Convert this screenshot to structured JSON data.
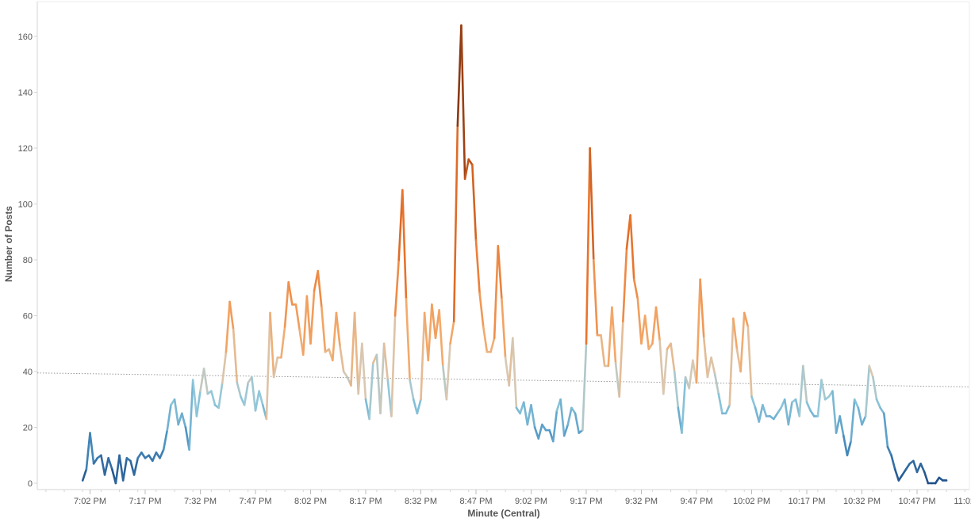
{
  "chart_data": {
    "type": "line",
    "title": "",
    "xlabel": "Minute (Central)",
    "ylabel": "Number of Posts",
    "ylim": [
      0,
      168
    ],
    "x_range_minutes_after_7pm": [
      -10,
      125
    ],
    "yticks": [
      0,
      20,
      40,
      60,
      80,
      100,
      120,
      140,
      160
    ],
    "xticks": [
      {
        "value": 2,
        "label": "7:02 PM"
      },
      {
        "value": 17,
        "label": "7:17 PM"
      },
      {
        "value": 32,
        "label": "7:32 PM"
      },
      {
        "value": 47,
        "label": "7:47 PM"
      },
      {
        "value": 62,
        "label": "8:02 PM"
      },
      {
        "value": 77,
        "label": "8:17 PM"
      },
      {
        "value": 92,
        "label": "8:32 PM"
      },
      {
        "value": 107,
        "label": "8:47 PM"
      },
      {
        "value": 122,
        "label": "9:02 PM"
      },
      {
        "value": 137,
        "label": "9:17 PM"
      },
      {
        "value": 152,
        "label": "9:32 PM"
      },
      {
        "value": 167,
        "label": "9:47 PM"
      },
      {
        "value": 182,
        "label": "10:02 PM"
      },
      {
        "value": 197,
        "label": "10:17 PM"
      },
      {
        "value": 212,
        "label": "10:32 PM"
      },
      {
        "value": 227,
        "label": "10:47 PM"
      },
      {
        "value": 242,
        "label": "11:02 PM"
      }
    ],
    "series": [
      {
        "start_minute": 0,
        "step_minutes": 1,
        "values": [
          1,
          5,
          18,
          7,
          9,
          10,
          3,
          9,
          5,
          0,
          10,
          1,
          9,
          8,
          3,
          9,
          11,
          9,
          10,
          8,
          11,
          9,
          12,
          19,
          28,
          30,
          21,
          25,
          20,
          12,
          37,
          24,
          33,
          41,
          32,
          33,
          28,
          27,
          36,
          47,
          65,
          55,
          36,
          31,
          28,
          36,
          38,
          26,
          33,
          28,
          23,
          61,
          38,
          45,
          45,
          56,
          72,
          64,
          64,
          55,
          46,
          67,
          50,
          69,
          76,
          63,
          47,
          48,
          44,
          61,
          49,
          40,
          38,
          35,
          61,
          32,
          50,
          30,
          23,
          43,
          46,
          25,
          50,
          37,
          24,
          60,
          80,
          105,
          66,
          37,
          30,
          25,
          30,
          61,
          44,
          64,
          52,
          62,
          42,
          30,
          50,
          58,
          128,
          164,
          109,
          116,
          114,
          87,
          68,
          56,
          47,
          47,
          52,
          85,
          66,
          45,
          35,
          52,
          27,
          25,
          29,
          21,
          28,
          20,
          16,
          21,
          19,
          19,
          15,
          26,
          30,
          17,
          21,
          27,
          25,
          18,
          19,
          50,
          120,
          80,
          53,
          53,
          42,
          42,
          63,
          43,
          31,
          58,
          84,
          96,
          73,
          66,
          50,
          60,
          48,
          50,
          63,
          51,
          32,
          48,
          50,
          40,
          27,
          18,
          38,
          34,
          44,
          36,
          73,
          52,
          38,
          45,
          39,
          32,
          25,
          25,
          28,
          59,
          48,
          40,
          61,
          56,
          31,
          27,
          22,
          28,
          24,
          24,
          23,
          25,
          27,
          30,
          21,
          29,
          30,
          24,
          42,
          29,
          26,
          24,
          24,
          37,
          30,
          31,
          33,
          18,
          24,
          17,
          10,
          15,
          30,
          27,
          21,
          24,
          42,
          38,
          30,
          27,
          25,
          13,
          10,
          5,
          1,
          3,
          5,
          7,
          8,
          4,
          7,
          4,
          0,
          0,
          0,
          2,
          1,
          1
        ]
      }
    ],
    "trend_line": {
      "start_value": 39.5,
      "end_value": 34.5
    },
    "color_scale": {
      "low": "#1f4e88",
      "low_mid": "#4a92c2",
      "mid_low": "#8fc8dc",
      "neutral": "#d9c8b2",
      "mid_high": "#f3a96a",
      "high_mid": "#e8742c",
      "high": "#b04a16",
      "top": "#6b2a10"
    },
    "colors": {
      "axis": "#d6d6d6",
      "tick_text": "#555555",
      "trend_line": "#9a9a9a"
    }
  }
}
